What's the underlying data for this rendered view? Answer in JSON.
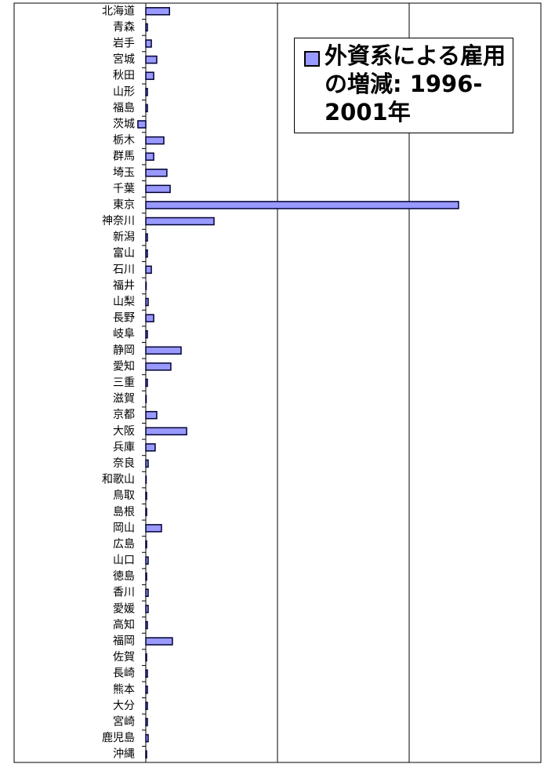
{
  "chart_data": {
    "type": "hbar",
    "categories": [
      "北海道",
      "青森",
      "岩手",
      "宮城",
      "秋田",
      "山形",
      "福島",
      "茨城",
      "栃木",
      "群馬",
      "埼玉",
      "千葉",
      "東京",
      "神奈川",
      "新潟",
      "富山",
      "石川",
      "福井",
      "山梨",
      "長野",
      "岐阜",
      "静岡",
      "愛知",
      "三重",
      "滋賀",
      "京都",
      "大阪",
      "兵庫",
      "奈良",
      "和歌山",
      "鳥取",
      "島根",
      "岡山",
      "広島",
      "山口",
      "徳島",
      "香川",
      "愛媛",
      "高知",
      "福岡",
      "佐賀",
      "長崎",
      "熊本",
      "大分",
      "宮崎",
      "鹿児島",
      "沖縄"
    ],
    "series": [
      {
        "name": "外資系による雇用の増減: 1996-2001年",
        "color": "#9999ff",
        "values": [
          1800,
          120,
          420,
          830,
          600,
          120,
          120,
          -600,
          1370,
          600,
          1600,
          1850,
          23750,
          5180,
          120,
          120,
          420,
          0,
          180,
          600,
          120,
          2680,
          1900,
          120,
          0,
          830,
          3100,
          710,
          180,
          0,
          60,
          60,
          1190,
          60,
          180,
          60,
          180,
          180,
          120,
          2020,
          60,
          120,
          120,
          120,
          120,
          180,
          60
        ]
      }
    ],
    "xlim": [
      -10000,
      30000
    ],
    "xticks": [
      -10000,
      0,
      10000,
      20000,
      30000
    ],
    "grid": true,
    "legend": "top-right"
  }
}
